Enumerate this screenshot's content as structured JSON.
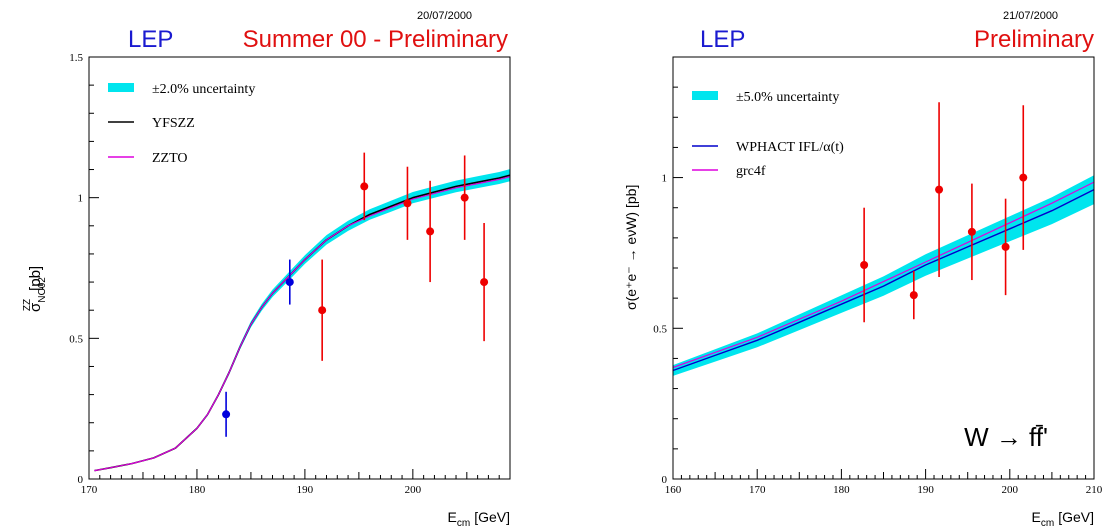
{
  "chart_data": [
    {
      "type": "line",
      "date": "20/07/2000",
      "lep_label": "LEP",
      "title": "Summer 00 - Preliminary",
      "xlabel_main": "E",
      "xlabel_sub": "cm",
      "xlabel_unit": "[GeV]",
      "ylabel_main": "σ",
      "ylabel_sup": "ZZ",
      "ylabel_sub": "NC02",
      "ylabel_unit": "[pb]",
      "xlim": [
        170,
        209
      ],
      "ylim": [
        0,
        1.5
      ],
      "xticks": [
        170,
        180,
        190,
        200
      ],
      "yticks": [
        0,
        0.5,
        1,
        1.5
      ],
      "ytick_labels": [
        "0",
        "0.5",
        "1",
        "1.5"
      ],
      "grid": false,
      "legend_position": "top-left",
      "legend": [
        {
          "label": "±2.0% uncertainty",
          "kind": "band",
          "color": "#00e5ee"
        },
        {
          "label": "YFSZZ",
          "kind": "line",
          "color": "#000000"
        },
        {
          "label": "ZZTO",
          "kind": "line",
          "color": "#dd00dd"
        }
      ],
      "band_rel": 0.02,
      "theory": {
        "x": [
          170.5,
          172,
          174,
          176,
          178,
          180,
          181,
          182,
          183,
          184,
          185,
          186,
          187,
          188,
          189,
          190,
          192,
          194,
          196,
          198,
          200,
          202,
          204,
          206,
          208,
          209
        ],
        "YFSZZ": [
          0.03,
          0.04,
          0.055,
          0.075,
          0.11,
          0.18,
          0.23,
          0.3,
          0.38,
          0.47,
          0.55,
          0.61,
          0.66,
          0.7,
          0.74,
          0.78,
          0.85,
          0.9,
          0.94,
          0.97,
          1.0,
          1.02,
          1.04,
          1.055,
          1.07,
          1.08
        ],
        "ZZTO": [
          0.03,
          0.04,
          0.055,
          0.075,
          0.11,
          0.18,
          0.23,
          0.3,
          0.38,
          0.47,
          0.55,
          0.61,
          0.66,
          0.7,
          0.74,
          0.78,
          0.85,
          0.9,
          0.935,
          0.965,
          0.995,
          1.015,
          1.035,
          1.05,
          1.065,
          1.075
        ]
      },
      "series": [
        {
          "color": "#0000dd",
          "points": [
            {
              "x": 182.7,
              "y": 0.23,
              "err": 0.08
            },
            {
              "x": 188.6,
              "y": 0.7,
              "err": 0.08
            }
          ]
        },
        {
          "color": "#ee0000",
          "points": [
            {
              "x": 191.6,
              "y": 0.6,
              "err": 0.18
            },
            {
              "x": 195.5,
              "y": 1.04,
              "err": 0.12
            },
            {
              "x": 199.5,
              "y": 0.98,
              "err": 0.13
            },
            {
              "x": 201.6,
              "y": 0.88,
              "err": 0.18
            },
            {
              "x": 204.8,
              "y": 1.0,
              "err": 0.15
            },
            {
              "x": 206.6,
              "y": 0.7,
              "err": 0.21
            }
          ]
        }
      ]
    },
    {
      "type": "line",
      "date": "21/07/2000",
      "lep_label": "LEP",
      "title": "Preliminary",
      "annotation": "W → ff̄'",
      "xlabel_main": "E",
      "xlabel_sub": "cm",
      "xlabel_unit": "[GeV]",
      "ylabel": "σ(e⁺e⁻ → eνW) [pb]",
      "xlim": [
        160,
        210
      ],
      "ylim": [
        0,
        1.4
      ],
      "xticks": [
        160,
        170,
        180,
        190,
        200,
        210
      ],
      "yticks": [
        0,
        0.5,
        1
      ],
      "ytick_labels": [
        "0",
        "0.5",
        "1"
      ],
      "grid": false,
      "legend_position": "top-left",
      "legend": [
        {
          "label": "±5.0% uncertainty",
          "kind": "band",
          "color": "#00e5ee"
        },
        {
          "label": "WPHACT IFL/α(t)",
          "kind": "line",
          "color": "#0000cc"
        },
        {
          "label": "grc4f",
          "kind": "line",
          "color": "#dd00dd"
        }
      ],
      "band_rel": 0.05,
      "theory": {
        "x": [
          160,
          165,
          170,
          175,
          180,
          185,
          190,
          195,
          200,
          205,
          210
        ],
        "WPHACT": [
          0.36,
          0.41,
          0.46,
          0.52,
          0.58,
          0.64,
          0.71,
          0.77,
          0.83,
          0.89,
          0.96
        ],
        "grc4f": [
          0.37,
          0.42,
          0.47,
          0.53,
          0.59,
          0.655,
          0.72,
          0.785,
          0.85,
          0.915,
          0.985
        ]
      },
      "series": [
        {
          "color": "#ee0000",
          "points": [
            {
              "x": 182.7,
              "y": 0.71,
              "err": 0.19
            },
            {
              "x": 188.6,
              "y": 0.61,
              "err": 0.08
            },
            {
              "x": 191.6,
              "y": 0.96,
              "err": 0.29
            },
            {
              "x": 195.5,
              "y": 0.82,
              "err": 0.16
            },
            {
              "x": 199.5,
              "y": 0.77,
              "err": 0.16
            },
            {
              "x": 201.6,
              "y": 1.0,
              "err": 0.24
            }
          ]
        }
      ]
    }
  ]
}
